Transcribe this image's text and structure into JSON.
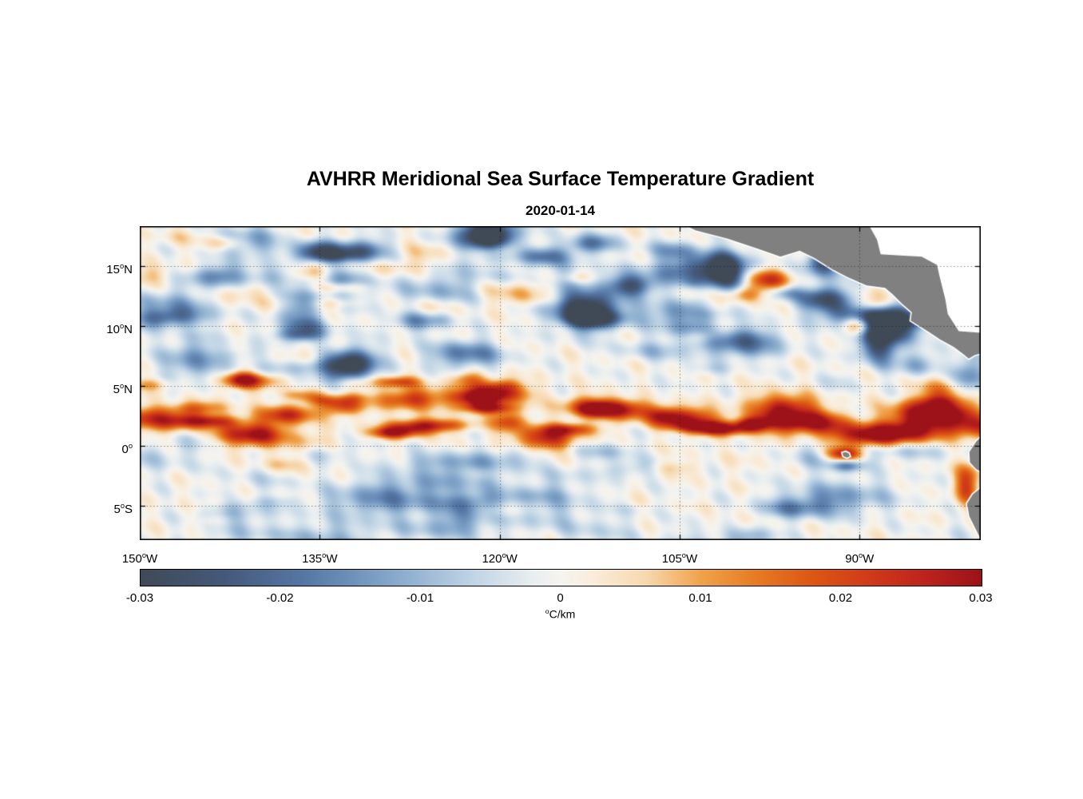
{
  "title": "AVHRR Meridional Sea Surface Temperature Gradient",
  "subtitle": "2020-01-14",
  "chart_data": {
    "type": "heatmap",
    "title": "AVHRR Meridional Sea Surface Temperature Gradient",
    "date": "2020-01-14",
    "xlabel": "",
    "ylabel": "",
    "units": "°C/km",
    "lon_range": [
      -150,
      -79.9
    ],
    "lat_range": [
      -7.86,
      18.3
    ],
    "value_range": [
      -0.03,
      0.03
    ],
    "grid": {
      "style": "dotted",
      "color": "rgba(20,20,20,0.5)",
      "visible": true
    },
    "land_color": "#808080",
    "x_ticks": [
      {
        "lon": -150,
        "text": "150",
        "sup": "o",
        "suffix": "W"
      },
      {
        "lon": -135,
        "text": "135",
        "sup": "o",
        "suffix": "W"
      },
      {
        "lon": -120,
        "text": "120",
        "sup": "o",
        "suffix": "W"
      },
      {
        "lon": -105,
        "text": "105",
        "sup": "o",
        "suffix": "W"
      },
      {
        "lon": -90,
        "text": "90",
        "sup": "o",
        "suffix": "W"
      }
    ],
    "y_ticks": [
      {
        "lat": 15,
        "text": "15",
        "sup": "o",
        "suffix": "N"
      },
      {
        "lat": 10,
        "text": "10",
        "sup": "o",
        "suffix": "N"
      },
      {
        "lat": 5,
        "text": "5",
        "sup": "o",
        "suffix": "N"
      },
      {
        "lat": 0,
        "text": "0",
        "sup": "o",
        "suffix": ""
      },
      {
        "lat": -5,
        "text": "5",
        "sup": "o",
        "suffix": "S"
      }
    ],
    "colorbar": {
      "orientation": "horizontal",
      "ticks": [
        {
          "value": -0.03,
          "label": "-0.03"
        },
        {
          "value": -0.02,
          "label": "-0.02"
        },
        {
          "value": -0.01,
          "label": "-0.01"
        },
        {
          "value": 0,
          "label": "0"
        },
        {
          "value": 0.01,
          "label": "0.01"
        },
        {
          "value": 0.02,
          "label": "0.02"
        },
        {
          "value": 0.03,
          "label": "0.03"
        }
      ],
      "unit_sup": "o",
      "unit_text": "C/km",
      "stops": [
        [
          -0.03,
          "#3f4a56"
        ],
        [
          -0.024,
          "#44597a"
        ],
        [
          -0.018,
          "#5679a8"
        ],
        [
          -0.012,
          "#85a8cc"
        ],
        [
          -0.006,
          "#c2d6e6"
        ],
        [
          -0.002,
          "#e9eef0"
        ],
        [
          0.0,
          "#f6f4ef"
        ],
        [
          0.002,
          "#f9eedd"
        ],
        [
          0.006,
          "#f7d9b0"
        ],
        [
          0.01,
          "#f0a249"
        ],
        [
          0.014,
          "#e67a22"
        ],
        [
          0.018,
          "#dc5614"
        ],
        [
          0.022,
          "#d03a18"
        ],
        [
          0.026,
          "#bc231d"
        ],
        [
          0.03,
          "#9c1218"
        ]
      ]
    },
    "land_polygons": {
      "caribbean_mask": [
        [
          -89.2,
          18.45
        ],
        [
          -88.5,
          17.2
        ],
        [
          -88.2,
          16.0
        ],
        [
          -86.6,
          15.9
        ],
        [
          -84.8,
          15.8
        ],
        [
          -83.5,
          15.1
        ],
        [
          -83.3,
          14.2
        ],
        [
          -82.8,
          12.2
        ],
        [
          -82.6,
          11.0
        ],
        [
          -81.7,
          9.6
        ],
        [
          -79.7,
          9.45
        ],
        [
          -79.7,
          18.45
        ]
      ],
      "central_america": [
        [
          -104.8,
          18.45
        ],
        [
          -103.7,
          17.9
        ],
        [
          -101.0,
          17.2
        ],
        [
          -98.6,
          16.4
        ],
        [
          -96.6,
          15.7
        ],
        [
          -95.0,
          16.2
        ],
        [
          -93.8,
          15.6
        ],
        [
          -92.2,
          14.6
        ],
        [
          -90.8,
          13.9
        ],
        [
          -89.4,
          13.3
        ],
        [
          -87.9,
          13.1
        ],
        [
          -87.3,
          12.6
        ],
        [
          -86.5,
          11.8
        ],
        [
          -85.7,
          11.1
        ],
        [
          -85.8,
          10.4
        ],
        [
          -85.0,
          9.9
        ],
        [
          -84.2,
          9.4
        ],
        [
          -83.3,
          8.8
        ],
        [
          -82.2,
          8.2
        ],
        [
          -81.4,
          7.6
        ],
        [
          -80.9,
          7.2
        ],
        [
          -80.4,
          7.5
        ],
        [
          -79.7,
          7.7
        ],
        [
          -79.7,
          9.45
        ],
        [
          -81.7,
          9.6
        ],
        [
          -82.6,
          11.0
        ],
        [
          -82.8,
          12.2
        ],
        [
          -83.3,
          14.2
        ],
        [
          -83.5,
          15.1
        ],
        [
          -84.8,
          15.8
        ],
        [
          -86.6,
          15.9
        ],
        [
          -88.2,
          16.0
        ],
        [
          -88.5,
          17.2
        ],
        [
          -89.2,
          18.45
        ]
      ],
      "ecuador": [
        [
          -79.7,
          1.0
        ],
        [
          -80.3,
          0.4
        ],
        [
          -80.9,
          -0.5
        ],
        [
          -80.85,
          -1.4
        ],
        [
          -80.3,
          -2.0
        ],
        [
          -79.7,
          -2.3
        ]
      ],
      "peru": [
        [
          -79.7,
          -3.3
        ],
        [
          -80.6,
          -4.0
        ],
        [
          -81.1,
          -4.8
        ],
        [
          -80.9,
          -5.9
        ],
        [
          -80.4,
          -6.9
        ],
        [
          -80.05,
          -7.6
        ],
        [
          -79.7,
          -8.0
        ]
      ],
      "galapagos": [
        [
          -91.5,
          -0.55
        ],
        [
          -91.15,
          -0.45
        ],
        [
          -90.85,
          -0.6
        ],
        [
          -90.75,
          -0.9
        ],
        [
          -91.05,
          -1.05
        ],
        [
          -91.4,
          -0.9
        ]
      ]
    },
    "field": {
      "seed": 11,
      "noise_amp": 0.0032,
      "resolution_deg": 0.2,
      "bands": [
        {
          "lon_start": -150,
          "lon_end": -80,
          "step": 2.1,
          "lat_center": 2.2,
          "wiggle_amp": 1.2,
          "wiggle_freq": 0.5,
          "lat_jitter": 1.5,
          "sx": [
            1.2,
            3.2
          ],
          "sy": [
            0.45,
            1.05
          ],
          "amp": [
            0.011,
            0.027
          ],
          "skip": 0.12
        },
        {
          "lon_start": -149,
          "lon_end": -116,
          "step": 3.1,
          "lat_center": 4.9,
          "wiggle_amp": 0.7,
          "wiggle_freq": 0.33,
          "lat_jitter": 1.0,
          "sx": [
            1.1,
            2.5
          ],
          "sy": [
            0.4,
            0.85
          ],
          "amp": [
            0.008,
            0.02
          ],
          "skip": 0.22
        }
      ],
      "patches": [
        {
          "count": 44,
          "lon": [
            -150,
            -82
          ],
          "lat": [
            6.5,
            18.2
          ],
          "amp": [
            -0.022,
            -0.004
          ],
          "sx": [
            1.4,
            4.2
          ],
          "sy": [
            0.6,
            1.8
          ]
        },
        {
          "count": 28,
          "lon": [
            -150,
            -82
          ],
          "lat": [
            -7.8,
            -0.3
          ],
          "amp": [
            -0.011,
            -0.003
          ],
          "sx": [
            1.8,
            4.6
          ],
          "sy": [
            0.7,
            1.7
          ]
        },
        {
          "count": 60,
          "lon": [
            -150,
            -80
          ],
          "lat": [
            -7.5,
            17.8
          ],
          "amp": [
            -0.005,
            0.007
          ],
          "sx": [
            0.9,
            2.4
          ],
          "sy": [
            0.4,
            1.1
          ]
        },
        {
          "count": 16,
          "lon": [
            -150,
            -100
          ],
          "lat": [
            9,
            17.5
          ],
          "amp": [
            0.003,
            0.011
          ],
          "sx": [
            1.2,
            2.8
          ],
          "sy": [
            0.4,
            0.9
          ]
        }
      ],
      "features": [
        [
          -97.6,
          13.9,
          2.0,
          0.9,
          0.03
        ],
        [
          -96.0,
          12.8,
          1.4,
          0.6,
          -0.013
        ],
        [
          -99.5,
          12.7,
          1.6,
          0.7,
          0.016
        ],
        [
          -93.2,
          12.4,
          1.9,
          1.0,
          -0.022
        ],
        [
          -90.0,
          10.1,
          1.3,
          0.9,
          0.032
        ],
        [
          -89.2,
          11.6,
          1.6,
          0.7,
          0.016
        ],
        [
          -88.3,
          8.2,
          1.7,
          1.2,
          -0.024
        ],
        [
          -85.2,
          6.8,
          1.6,
          1.0,
          -0.012
        ],
        [
          -91.3,
          -0.75,
          1.5,
          0.6,
          0.03
        ],
        [
          -90.9,
          -1.7,
          1.3,
          0.5,
          -0.015
        ],
        [
          -84.8,
          1.6,
          2.2,
          1.1,
          0.024
        ],
        [
          -81.6,
          2.6,
          1.8,
          1.4,
          0.02
        ],
        [
          -81.0,
          -3.4,
          1.0,
          1.6,
          0.02
        ],
        [
          -80.8,
          5.8,
          1.3,
          1.9,
          -0.017
        ],
        [
          -83.2,
          4.1,
          2.0,
          1.4,
          0.016
        ],
        [
          -87.0,
          1.0,
          2.6,
          1.0,
          0.022
        ],
        [
          -93.6,
          1.9,
          2.6,
          1.0,
          0.024
        ],
        [
          -120.9,
          17.6,
          2.4,
          1.0,
          -0.024
        ],
        [
          -131.6,
          16.4,
          2.2,
          0.9,
          -0.021
        ],
        [
          -112.4,
          16.9,
          2.0,
          0.8,
          -0.019
        ],
        [
          -143.6,
          14.2,
          2.4,
          0.9,
          -0.017
        ],
        [
          -126.9,
          10.4,
          2.2,
          0.8,
          -0.015
        ],
        [
          -105.4,
          16.4,
          2.0,
          0.8,
          -0.012
        ],
        [
          -136.2,
          10.1,
          1.8,
          0.7,
          -0.012
        ],
        [
          -146.6,
          2.1,
          2.2,
          0.8,
          0.02
        ],
        [
          -127.6,
          3.9,
          2.6,
          0.9,
          0.023
        ],
        [
          -120.4,
          4.4,
          2.8,
          0.8,
          0.022
        ],
        [
          -112.1,
          3.2,
          2.6,
          0.9,
          0.024
        ],
        [
          -104.2,
          2.3,
          2.6,
          0.9,
          0.026
        ],
        [
          -96.6,
          2.1,
          2.8,
          1.0,
          0.026
        ],
        [
          -109.0,
          13.4,
          1.8,
          0.8,
          -0.016
        ],
        [
          -116.5,
          15.8,
          2.0,
          0.8,
          -0.018
        ]
      ]
    }
  }
}
